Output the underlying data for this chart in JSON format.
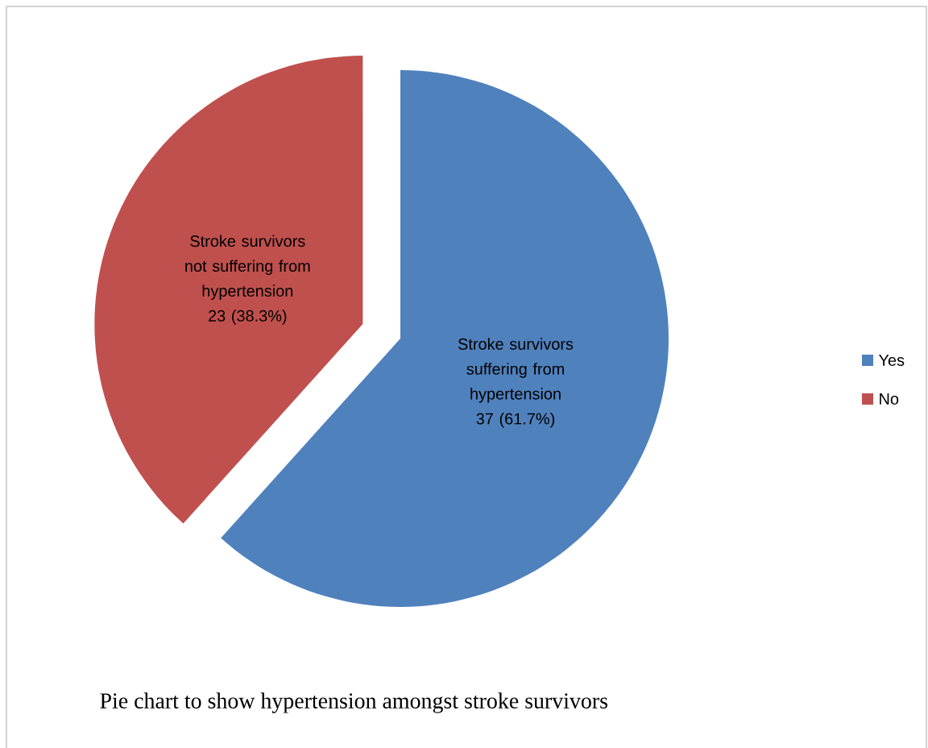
{
  "chart_data": {
    "type": "pie",
    "title": "Pie chart to show hypertension amongst stroke survivors",
    "categories": [
      "Yes",
      "No"
    ],
    "values": [
      37,
      23
    ],
    "colors": [
      "#4f81bd",
      "#c0504d"
    ],
    "value_labels": [
      "Stroke survivors suffering from hypertension 37 (61.7%)",
      "Stroke survivors not suffering from hypertension 23 (38.3%)"
    ],
    "legend": "right"
  }
}
